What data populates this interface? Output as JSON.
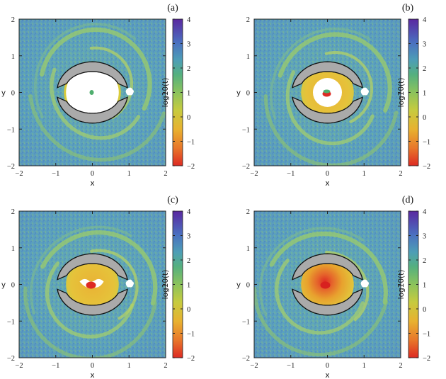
{
  "chart_data": [
    {
      "type": "heatmap",
      "panel": "(a)",
      "xlabel": "x",
      "ylabel": "y",
      "xlim": [
        -2,
        2
      ],
      "ylim": [
        -2,
        2
      ],
      "xticks": [
        "−2",
        "−1",
        "0",
        "1",
        "2"
      ],
      "yticks": [
        "−2",
        "−1",
        "0",
        "1",
        "2"
      ],
      "colorbar": {
        "label": "log10(t)",
        "range": [
          -2,
          4
        ],
        "ticks": [
          "4",
          "3",
          "2",
          "1",
          "0",
          "−1",
          "−2"
        ]
      },
      "inner_region": "white",
      "center_spot": "green"
    },
    {
      "type": "heatmap",
      "panel": "(b)",
      "xlabel": "x",
      "ylabel": "y",
      "xlim": [
        -2,
        2
      ],
      "ylim": [
        -2,
        2
      ],
      "xticks": [
        "−2",
        "−1",
        "0",
        "1",
        "2"
      ],
      "yticks": [
        "−2",
        "−1",
        "0",
        "1",
        "2"
      ],
      "colorbar": {
        "label": "log10(t)",
        "range": [
          -2,
          4
        ],
        "ticks": [
          "4",
          "3",
          "2",
          "1",
          "0",
          "−1",
          "−2"
        ]
      },
      "inner_region": "ring",
      "center_spot": "red"
    },
    {
      "type": "heatmap",
      "panel": "(c)",
      "xlabel": "x",
      "ylabel": "y",
      "xlim": [
        -2,
        2
      ],
      "ylim": [
        -2,
        2
      ],
      "xticks": [
        "−2",
        "−1",
        "0",
        "1",
        "2"
      ],
      "yticks": [
        "−2",
        "−1",
        "0",
        "1",
        "2"
      ],
      "colorbar": {
        "label": "log10(t)",
        "range": [
          -2,
          4
        ],
        "ticks": [
          "4",
          "3",
          "2",
          "1",
          "0",
          "−1",
          "−2"
        ]
      },
      "inner_region": "yellow",
      "center_spot": "red-small"
    },
    {
      "type": "heatmap",
      "panel": "(d)",
      "xlabel": "x",
      "ylabel": "y",
      "xlim": [
        -2,
        2
      ],
      "ylim": [
        -2,
        2
      ],
      "xticks": [
        "−2",
        "−1",
        "0",
        "1",
        "2"
      ],
      "yticks": [
        "−2",
        "−1",
        "0",
        "1",
        "2"
      ],
      "colorbar": {
        "label": "log10(t)",
        "range": [
          -2,
          4
        ],
        "ticks": [
          "4",
          "3",
          "2",
          "1",
          "0",
          "−1",
          "−2"
        ]
      },
      "inner_region": "gradient",
      "center_spot": "red-large"
    }
  ],
  "colors": {
    "background_teal": "#5fa8b8",
    "blue": "#4a7fc0",
    "green": "#8cc35c",
    "yellow": "#e4c237",
    "orange": "#e8a22e",
    "red": "#dd2a23",
    "gray": "#aaaaaa",
    "purple": "#5a28a0"
  }
}
